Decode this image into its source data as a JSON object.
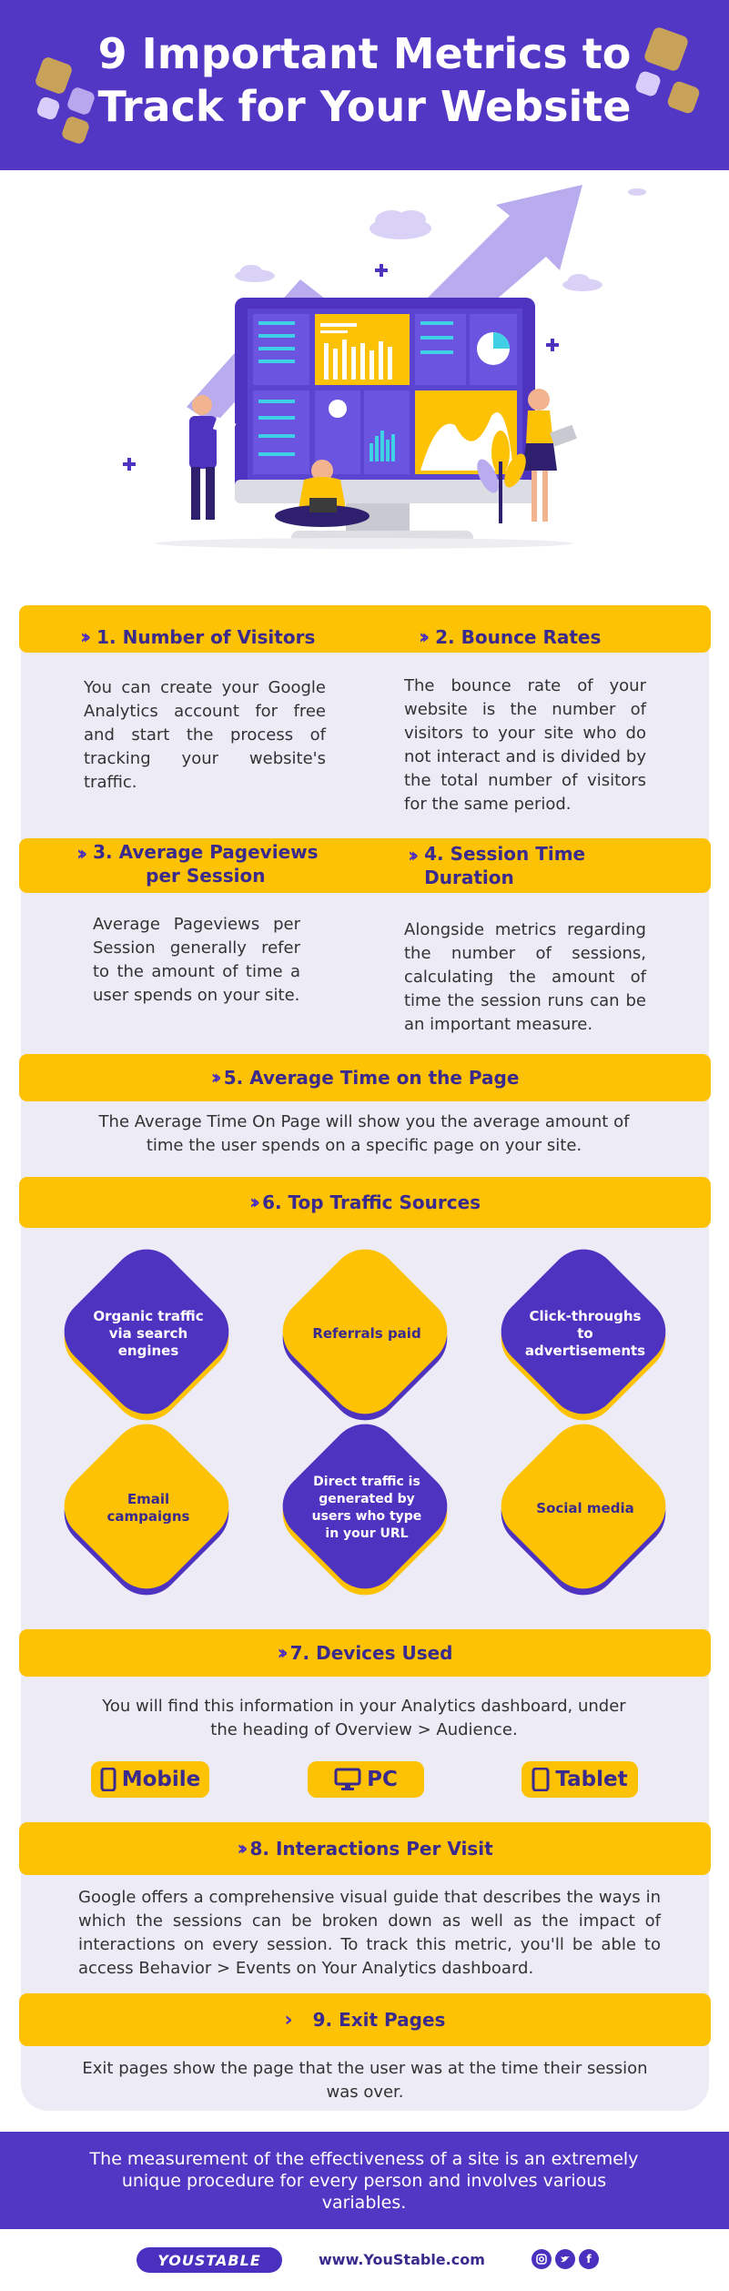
{
  "header": {
    "title_line1": "9 Important Metrics to",
    "title_line2": "Track for Your Website"
  },
  "sections": {
    "s1": {
      "title": "1. Number of Visitors",
      "text": "You can create your Google Analytics account for free and start the process of tracking your website's traffic."
    },
    "s2": {
      "title": "2. Bounce Rates",
      "text": "The bounce rate of your website is the number of visitors to your site who do not interact and is divided by the total number of visitors for the same period."
    },
    "s3": {
      "title_line1": "3. Average Pageviews",
      "title_line2": "per Session",
      "text": "Average Pageviews per Session generally refer to the amount of time a user spends on your site."
    },
    "s4": {
      "title_line1": "4. Session Time",
      "title_line2": "Duration",
      "text": "Alongside metrics regarding the number of sessions, calculating the amount of time the session runs can be an important measure."
    },
    "s5": {
      "title": "5. Average Time on the Page",
      "text": "The Average Time On Page will show you the average amount of time the user spends on a specific page on your site."
    },
    "s6": {
      "title": "6. Top Traffic Sources",
      "sources": [
        "Organic traffic via search engines",
        "Referrals paid",
        "Click-throughs to advertisements",
        "Email campaigns",
        "Direct traffic is generated by users who type in your URL",
        "Social media"
      ]
    },
    "s7": {
      "title": "7. Devices Used",
      "text": "You will find this information in your Analytics dashboard, under the heading of Overview > Audience.",
      "devices": [
        "Mobile",
        "PC",
        "Tablet"
      ]
    },
    "s8": {
      "title": "8. Interactions Per Visit",
      "text": "Google offers a comprehensive visual guide that describes the ways in which the sessions can be broken down as well as the impact of interactions on every session. To track this metric, you'll be able to access Behavior > Events on Your Analytics dashboard."
    },
    "s9": {
      "title": "9. Exit Pages",
      "text": "Exit pages show the page that the user was at the time their session was over."
    }
  },
  "footer": {
    "summary": "The measurement of the effectiveness of a site is an extremely unique procedure for every person and involves various variables.",
    "brand": "YOUSTABLE",
    "website": "www.YouStable.com",
    "social_icons": [
      "instagram-icon",
      "twitter-icon",
      "facebook-icon"
    ]
  },
  "colors": {
    "primary_purple": "#5236c4",
    "accent_yellow": "#fcc203",
    "panel_bg": "#ecebf6",
    "heading_text": "#3b2a8e"
  }
}
